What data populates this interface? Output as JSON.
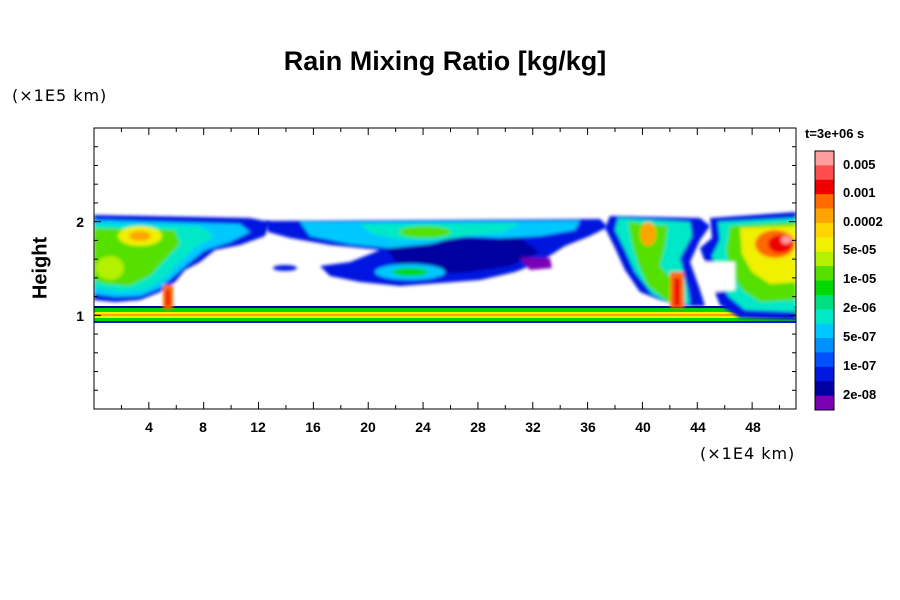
{
  "chart_data": {
    "type": "heatmap",
    "title": "Rain Mixing Ratio [kg/kg]",
    "ylabel": "Height",
    "y_unit": "(×1E5 km)",
    "x_unit": "(×1E4 km)",
    "time_label": "t=3e+06 s",
    "xlim": [
      0,
      51.2
    ],
    "ylim": [
      0,
      3
    ],
    "x_ticks": [
      "4",
      "8",
      "12",
      "16",
      "20",
      "24",
      "28",
      "32",
      "36",
      "40",
      "44",
      "48"
    ],
    "y_ticks": [
      "1",
      "2"
    ],
    "colorbar": {
      "levels": [
        "0.005",
        "0.001",
        "0.0002",
        "5e-05",
        "1e-05",
        "2e-06",
        "5e-07",
        "1e-07",
        "2e-08"
      ],
      "colors": [
        "#ff9e9e",
        "#ff4d4d",
        "#ee0000",
        "#ff6a00",
        "#ffa500",
        "#ffd500",
        "#f0f000",
        "#b4f000",
        "#55e000",
        "#00d800",
        "#00e080",
        "#00e8c8",
        "#00c8ff",
        "#0090ff",
        "#0050ff",
        "#0018e0",
        "#0000a0",
        "#7a00b4"
      ]
    },
    "regions": [
      {
        "x": [
          0,
          51.2
        ],
        "y": [
          0.92,
          1.02
        ],
        "level": "5e-05"
      },
      {
        "x": [
          0,
          11
        ],
        "y": [
          1.15,
          2.0
        ],
        "level": "1e-05"
      },
      {
        "x": [
          14,
          36
        ],
        "y": [
          1.3,
          2.0
        ],
        "level": "5e-07"
      },
      {
        "x": [
          38,
          44
        ],
        "y": [
          1.1,
          2.0
        ],
        "level": "5e-05"
      },
      {
        "x": [
          46,
          51.2
        ],
        "y": [
          1.1,
          2.0
        ],
        "level": "0.001"
      }
    ]
  }
}
